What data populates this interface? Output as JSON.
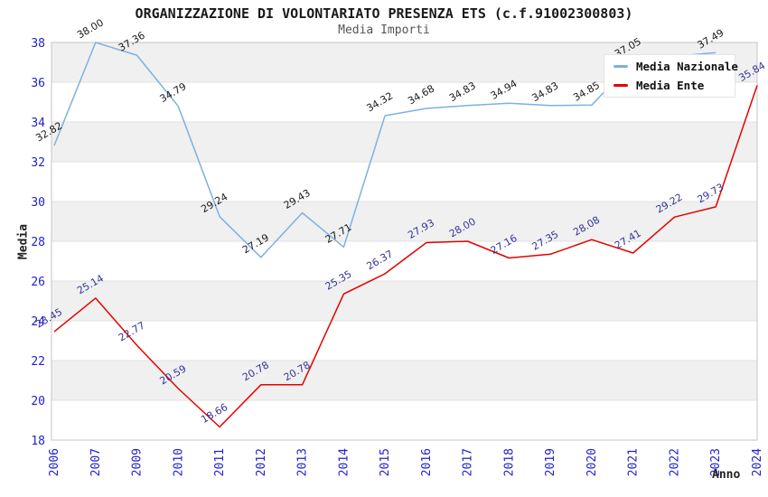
{
  "header": {
    "title": "ORGANIZZAZIONE DI VOLONTARIATO PRESENZA ETS (c.f.91002300803)",
    "subtitle": "Media Importi"
  },
  "legend": {
    "items": [
      {
        "label": "Media Nazionale",
        "color": "#7cb1e3"
      },
      {
        "label": "Media Ente",
        "color": "#e60000"
      }
    ]
  },
  "chart_data": {
    "type": "line",
    "title": "ORGANIZZAZIONE DI VOLONTARIATO PRESENZA ETS (c.f.91002300803)",
    "subtitle": "Media Importi",
    "xlabel": "Anno",
    "ylabel": "Media",
    "ylim": [
      18,
      38
    ],
    "ytick_step": 2,
    "grid": true,
    "legend_position": "top-right",
    "band_color": "#f0f0f0",
    "gridline_color": "#e0e0e0",
    "plot_border_color": "#c4c4c4",
    "tick_label_color": "#2222cc",
    "categories": [
      "2006",
      "2007",
      "2009",
      "2010",
      "2011",
      "2012",
      "2013",
      "2014",
      "2015",
      "2016",
      "2017",
      "2018",
      "2019",
      "2020",
      "2021",
      "2022",
      "2023",
      "2024"
    ],
    "series": [
      {
        "name": "Media Nazionale",
        "color": "#7cb1e3",
        "label_color": "#1a1a1a",
        "values": [
          32.82,
          38.0,
          37.36,
          34.79,
          29.24,
          27.19,
          29.43,
          27.71,
          34.32,
          34.68,
          34.83,
          34.94,
          34.83,
          34.85,
          37.05,
          37.3,
          37.49,
          null
        ],
        "labels": [
          "32.82",
          "38.00",
          "37.36",
          "34.79",
          "29.24",
          "27.19",
          "29.43",
          "27.71",
          "34.32",
          "34.68",
          "34.83",
          "34.94",
          "34.83",
          "34.85",
          "37.05",
          "",
          "37.49",
          ""
        ]
      },
      {
        "name": "Media Ente",
        "color": "#e60000",
        "label_color": "#333399",
        "values": [
          23.45,
          25.14,
          22.77,
          20.59,
          18.66,
          20.78,
          20.78,
          25.35,
          26.37,
          27.93,
          28.0,
          27.16,
          27.35,
          28.08,
          27.41,
          29.22,
          29.73,
          35.84
        ],
        "labels": [
          "23.45",
          "25.14",
          "22.77",
          "20.59",
          "18.66",
          "20.78",
          "20.78",
          "25.35",
          "26.37",
          "27.93",
          "28.00",
          "27.16",
          "27.35",
          "28.08",
          "27.41",
          "29.22",
          "29.73",
          "35.84"
        ]
      }
    ]
  }
}
